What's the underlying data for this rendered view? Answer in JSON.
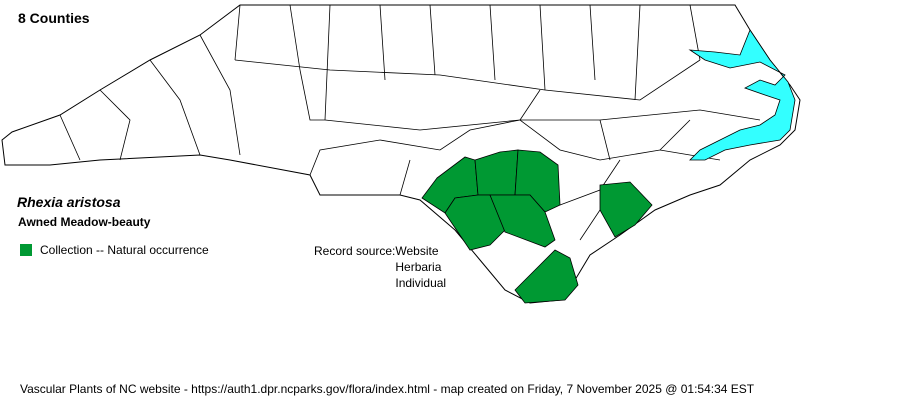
{
  "county_count": "8 Counties",
  "species": {
    "scientific_name": "Rhexia aristosa",
    "common_name": "Awned Meadow-beauty"
  },
  "legend": [
    {
      "label": "Collection -- Natural occurrence",
      "color": "#009933"
    }
  ],
  "record_source": {
    "label": "Record source:",
    "values": [
      "Website",
      "Herbaria",
      "Individual"
    ]
  },
  "footer": "Vascular Plants of NC website - https://auth1.dpr.ncparks.gov/flora/index.html - map created on Friday, 7 November 2025 @ 01:54:34 EST",
  "colors": {
    "occurrence": "#009933",
    "water": "#33ffff",
    "county_fill": "#ffffff",
    "border": "#000000"
  }
}
